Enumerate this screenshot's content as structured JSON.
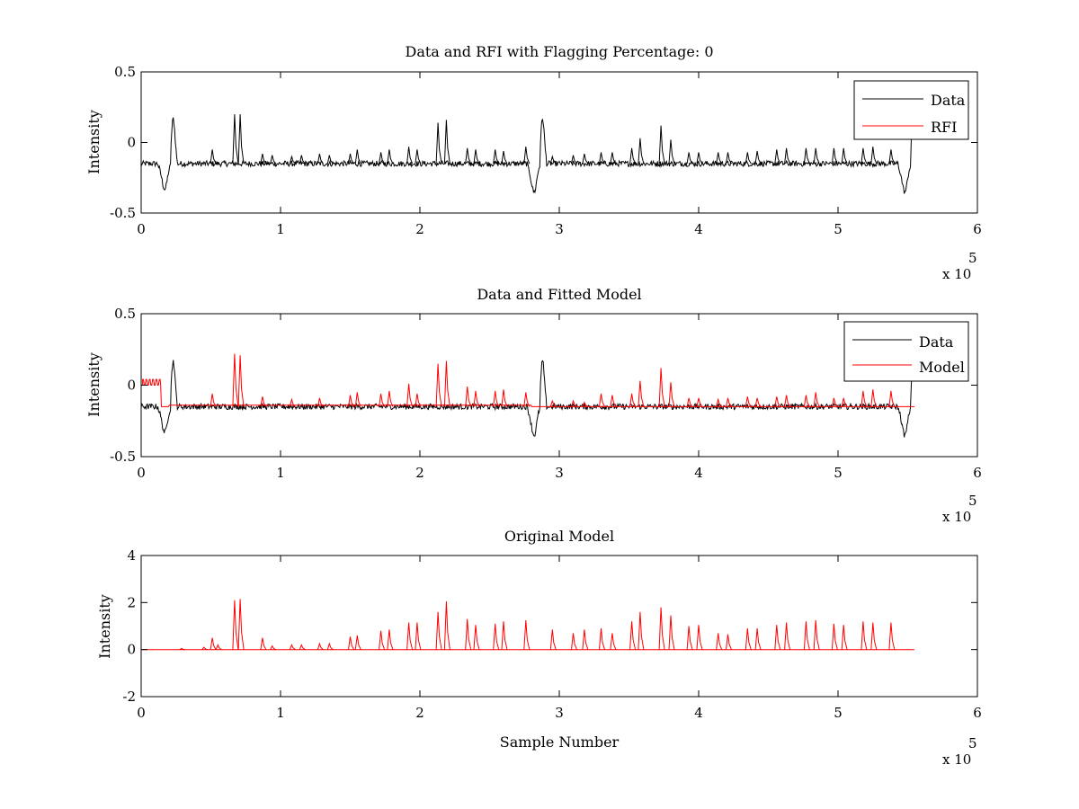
{
  "colors": {
    "data": "#000000",
    "rfi": "#ff0000",
    "model": "#ff0000",
    "axes": "#000000",
    "background": "#ffffff"
  },
  "chart_data": [
    {
      "type": "line",
      "title": "Data and RFI with Flagging Percentage: 0",
      "xlabel": "",
      "ylabel": "Intensity",
      "xlim": [
        0,
        600000
      ],
      "ylim": [
        -0.5,
        0.5
      ],
      "x_ticks": [
        "0",
        "1",
        "2",
        "3",
        "4",
        "5",
        "6"
      ],
      "y_ticks": [
        "-0.5",
        "0",
        "0.5"
      ],
      "x_multiplier": "x 10",
      "x_multiplier_exp": "5",
      "legend": {
        "placement": "top-right",
        "entries": [
          "Data",
          "RFI"
        ]
      },
      "series": [
        {
          "name": "Data",
          "color": "#000000",
          "baseline": -0.15,
          "noise": 0.02,
          "x_end": 555000,
          "dips": [
            [
              17000,
              -0.33
            ],
            [
              282000,
              -0.35
            ],
            [
              548000,
              -0.35
            ]
          ],
          "spikes": [
            [
              51000,
              -0.05
            ],
            [
              67000,
              0.2
            ],
            [
              71000,
              0.2
            ],
            [
              87000,
              -0.08
            ],
            [
              94000,
              -0.09
            ],
            [
              108000,
              -0.1
            ],
            [
              115000,
              -0.09
            ],
            [
              128000,
              -0.08
            ],
            [
              135000,
              -0.09
            ],
            [
              150000,
              -0.08
            ],
            [
              155000,
              -0.05
            ],
            [
              172000,
              -0.07
            ],
            [
              178000,
              -0.05
            ],
            [
              192000,
              -0.03
            ],
            [
              198000,
              -0.05
            ],
            [
              213000,
              0.14
            ],
            [
              219000,
              0.16
            ],
            [
              234000,
              -0.04
            ],
            [
              240000,
              -0.05
            ],
            [
              254000,
              -0.05
            ],
            [
              260000,
              -0.06
            ],
            [
              276000,
              -0.03
            ],
            [
              295000,
              -0.1
            ],
            [
              310000,
              -0.09
            ],
            [
              318000,
              -0.08
            ],
            [
              330000,
              -0.07
            ],
            [
              338000,
              -0.07
            ],
            [
              352000,
              -0.04
            ],
            [
              358000,
              0.03
            ],
            [
              373000,
              0.12
            ],
            [
              380000,
              0.02
            ],
            [
              393000,
              -0.07
            ],
            [
              400000,
              -0.07
            ],
            [
              414000,
              -0.07
            ],
            [
              421000,
              -0.07
            ],
            [
              435000,
              -0.07
            ],
            [
              442000,
              -0.06
            ],
            [
              456000,
              -0.05
            ],
            [
              463000,
              -0.04
            ],
            [
              477000,
              -0.04
            ],
            [
              484000,
              -0.04
            ],
            [
              497000,
              -0.04
            ],
            [
              504000,
              -0.04
            ],
            [
              518000,
              -0.04
            ],
            [
              525000,
              -0.03
            ],
            [
              538000,
              -0.05
            ]
          ]
        },
        {
          "name": "RFI",
          "color": "#ff0000",
          "points": []
        }
      ]
    },
    {
      "type": "line",
      "title": "Data and Fitted Model",
      "xlabel": "",
      "ylabel": "Intensity",
      "xlim": [
        0,
        600000
      ],
      "ylim": [
        -0.5,
        0.5
      ],
      "x_ticks": [
        "0",
        "1",
        "2",
        "3",
        "4",
        "5",
        "6"
      ],
      "y_ticks": [
        "-0.5",
        "0",
        "0.5"
      ],
      "x_multiplier": "x 10",
      "x_multiplier_exp": "5",
      "legend": {
        "placement": "top-right",
        "entries": [
          "Data",
          "Model"
        ]
      },
      "series": [
        {
          "name": "Data",
          "color": "#000000",
          "baseline": -0.15,
          "noise": 0.02,
          "x_end": 555000,
          "dips": [
            [
              17000,
              -0.33
            ],
            [
              282000,
              -0.35
            ],
            [
              548000,
              -0.35
            ]
          ],
          "spikes": []
        },
        {
          "name": "Model",
          "color": "#ff0000",
          "baseline": -0.15,
          "x_end": 555000,
          "early_plateau": {
            "x_start": 1000,
            "x_end": 14000,
            "y": 0.0,
            "bumps": 0.04
          },
          "spikes": [
            [
              51000,
              -0.06
            ],
            [
              67000,
              0.22
            ],
            [
              71000,
              0.21
            ],
            [
              87000,
              -0.08
            ],
            [
              108000,
              -0.1
            ],
            [
              128000,
              -0.09
            ],
            [
              150000,
              -0.07
            ],
            [
              155000,
              -0.05
            ],
            [
              172000,
              -0.06
            ],
            [
              178000,
              -0.04
            ],
            [
              192000,
              0.01
            ],
            [
              198000,
              -0.06
            ],
            [
              213000,
              0.15
            ],
            [
              219000,
              0.17
            ],
            [
              234000,
              -0.01
            ],
            [
              240000,
              -0.04
            ],
            [
              254000,
              -0.04
            ],
            [
              260000,
              -0.03
            ],
            [
              276000,
              -0.05
            ],
            [
              295000,
              -0.11
            ],
            [
              310000,
              -0.11
            ],
            [
              318000,
              -0.12
            ],
            [
              330000,
              -0.06
            ],
            [
              338000,
              -0.07
            ],
            [
              352000,
              -0.06
            ],
            [
              358000,
              0.03
            ],
            [
              373000,
              0.12
            ],
            [
              380000,
              0.02
            ],
            [
              393000,
              -0.09
            ],
            [
              400000,
              -0.09
            ],
            [
              414000,
              -0.1
            ],
            [
              421000,
              -0.09
            ],
            [
              435000,
              -0.08
            ],
            [
              442000,
              -0.09
            ],
            [
              456000,
              -0.08
            ],
            [
              463000,
              -0.07
            ],
            [
              477000,
              -0.07
            ],
            [
              484000,
              -0.05
            ],
            [
              497000,
              -0.09
            ],
            [
              504000,
              -0.09
            ],
            [
              518000,
              -0.04
            ],
            [
              525000,
              -0.03
            ],
            [
              538000,
              -0.04
            ]
          ]
        }
      ]
    },
    {
      "type": "line",
      "title": "Original Model",
      "xlabel": "Sample Number",
      "ylabel": "Intensity",
      "xlim": [
        0,
        600000
      ],
      "ylim": [
        -2,
        4
      ],
      "x_ticks": [
        "0",
        "1",
        "2",
        "3",
        "4",
        "5",
        "6"
      ],
      "y_ticks": [
        "-2",
        "0",
        "2",
        "4"
      ],
      "x_multiplier": "x 10",
      "x_multiplier_exp": "5",
      "legend": null,
      "series": [
        {
          "name": "",
          "color": "#ff0000",
          "baseline": 0.0,
          "x_end": 555000,
          "spikes": [
            [
              29000,
              0.05
            ],
            [
              45000,
              0.1
            ],
            [
              51000,
              0.5
            ],
            [
              55000,
              0.2
            ],
            [
              67000,
              2.1
            ],
            [
              71000,
              2.15
            ],
            [
              87000,
              0.5
            ],
            [
              94000,
              0.15
            ],
            [
              108000,
              0.2
            ],
            [
              115000,
              0.2
            ],
            [
              128000,
              0.25
            ],
            [
              135000,
              0.25
            ],
            [
              150000,
              0.55
            ],
            [
              155000,
              0.6
            ],
            [
              172000,
              0.8
            ],
            [
              178000,
              0.85
            ],
            [
              192000,
              1.15
            ],
            [
              198000,
              1.15
            ],
            [
              213000,
              1.6
            ],
            [
              219000,
              2.05
            ],
            [
              234000,
              1.3
            ],
            [
              240000,
              1.05
            ],
            [
              254000,
              1.1
            ],
            [
              260000,
              1.2
            ],
            [
              276000,
              1.25
            ],
            [
              295000,
              0.85
            ],
            [
              310000,
              0.7
            ],
            [
              318000,
              0.85
            ],
            [
              330000,
              0.9
            ],
            [
              338000,
              0.7
            ],
            [
              352000,
              1.2
            ],
            [
              358000,
              1.6
            ],
            [
              373000,
              1.8
            ],
            [
              380000,
              1.45
            ],
            [
              393000,
              1.0
            ],
            [
              400000,
              1.05
            ],
            [
              414000,
              0.7
            ],
            [
              421000,
              0.65
            ],
            [
              435000,
              0.9
            ],
            [
              442000,
              0.9
            ],
            [
              456000,
              1.05
            ],
            [
              463000,
              1.15
            ],
            [
              477000,
              1.2
            ],
            [
              484000,
              1.25
            ],
            [
              497000,
              1.1
            ],
            [
              504000,
              1.05
            ],
            [
              518000,
              1.2
            ],
            [
              525000,
              1.15
            ],
            [
              538000,
              1.15
            ]
          ]
        }
      ]
    }
  ]
}
